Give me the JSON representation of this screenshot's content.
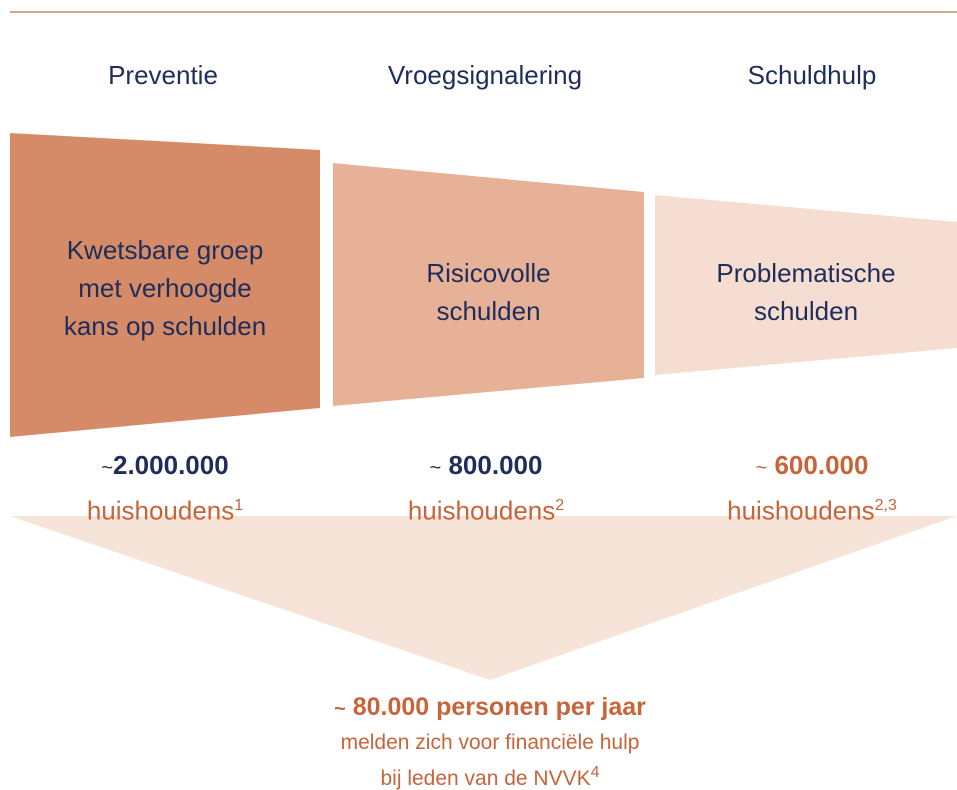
{
  "headers": [
    "Preventie",
    "Vroegsignalering",
    "Schuldhulp"
  ],
  "boxes": [
    {
      "lines": [
        "Kwetsbare groep",
        "met verhoogde",
        "kans op schulden"
      ]
    },
    {
      "lines": [
        "Risicovolle",
        "schulden"
      ]
    },
    {
      "lines": [
        "Problematische",
        "schulden"
      ]
    }
  ],
  "counts": [
    {
      "prefix": "~",
      "number": "2.000.000",
      "unit": "huishoudens",
      "note": "1"
    },
    {
      "prefix": "~",
      "number": "800.000",
      "unit": "huishoudens",
      "note": "2"
    },
    {
      "prefix": "~",
      "number": "600.000",
      "unit": "huishoudens",
      "note": "2,3"
    }
  ],
  "summary": {
    "prefix": "~",
    "headline": "80.000 personen per jaar",
    "lines": [
      "melden zich voor financiële hulp",
      "bij leden van de NVVK"
    ],
    "note": "4"
  }
}
